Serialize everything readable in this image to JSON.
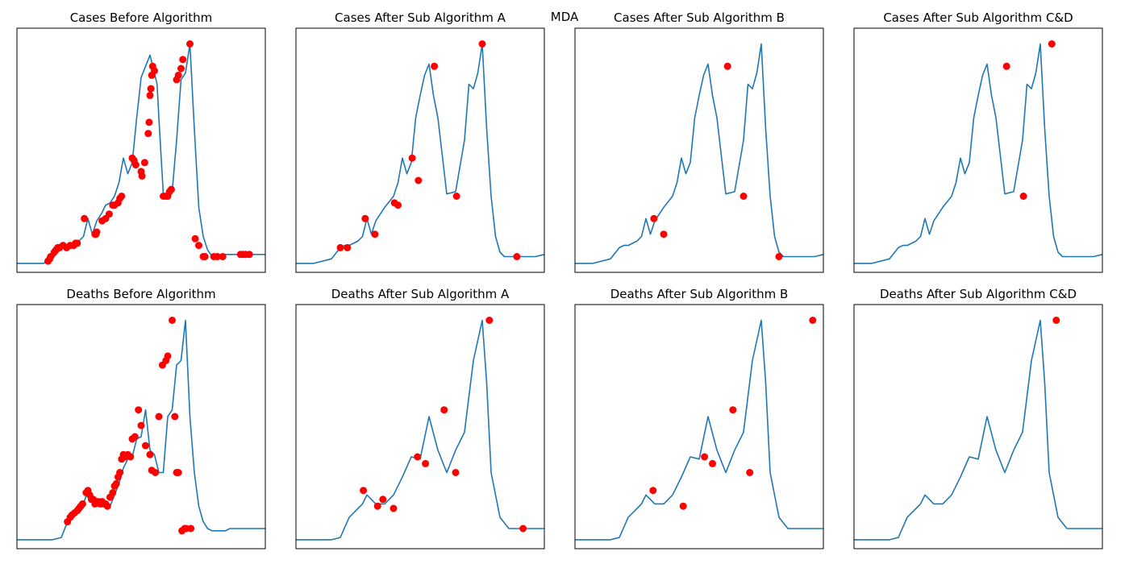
{
  "suptitle": "MDA",
  "colors": {
    "line": "#1f77b4",
    "marker": "#ff0000",
    "axes": "#000000"
  },
  "chart_data": [
    {
      "type": "line",
      "title": "Cases Before Algorithm",
      "x_range": [
        0,
        280
      ],
      "y_range": [
        -0.04,
        1.05
      ],
      "series": [
        {
          "x": [
            0,
            10,
            20,
            30,
            40,
            50,
            55,
            60,
            65,
            70,
            75,
            80,
            85,
            90,
            95,
            100,
            105,
            110,
            115,
            120,
            125,
            130,
            135,
            140,
            145,
            150,
            155,
            158,
            160,
            165,
            170,
            175,
            180,
            185,
            190,
            195,
            200,
            205,
            210,
            215,
            220,
            225,
            230,
            235,
            240,
            245,
            250,
            255,
            260,
            265,
            270,
            275,
            280
          ],
          "y": [
            0,
            0,
            0,
            0,
            0.02,
            0.07,
            0.08,
            0.08,
            0.09,
            0.1,
            0.12,
            0.2,
            0.13,
            0.19,
            0.22,
            0.26,
            0.27,
            0.3,
            0.36,
            0.47,
            0.4,
            0.45,
            0.65,
            0.83,
            0.88,
            0.93,
            0.85,
            0.8,
            0.65,
            0.31,
            0.3,
            0.32,
            0.55,
            0.82,
            0.85,
            0.98,
            0.6,
            0.25,
            0.12,
            0.06,
            0.03,
            0.03,
            0.04,
            0.04,
            0.04,
            0.04,
            0.04,
            0.04,
            0.04,
            0.04,
            0.04,
            0.04,
            0.04
          ]
        }
      ],
      "markers": {
        "x": [
          35,
          37,
          38,
          42,
          44,
          46,
          48,
          52,
          56,
          60,
          64,
          66,
          68,
          76,
          88,
          89,
          90,
          96,
          100,
          104,
          108,
          110,
          114,
          116,
          118,
          130,
          132,
          134,
          140,
          141,
          144,
          148,
          149,
          150,
          151,
          152,
          153,
          155,
          165,
          168,
          170,
          172,
          174,
          180,
          182,
          185,
          187,
          195,
          201,
          205,
          210,
          212,
          222,
          226,
          232,
          252,
          255,
          258,
          262
        ],
        "y": [
          0.01,
          0.02,
          0.03,
          0.05,
          0.06,
          0.07,
          0.07,
          0.08,
          0.07,
          0.08,
          0.08,
          0.09,
          0.09,
          0.2,
          0.13,
          0.13,
          0.14,
          0.19,
          0.2,
          0.22,
          0.26,
          0.26,
          0.27,
          0.29,
          0.3,
          0.47,
          0.46,
          0.44,
          0.41,
          0.39,
          0.45,
          0.58,
          0.63,
          0.75,
          0.78,
          0.84,
          0.88,
          0.86,
          0.3,
          0.3,
          0.3,
          0.32,
          0.33,
          0.82,
          0.84,
          0.87,
          0.91,
          0.98,
          0.11,
          0.08,
          0.03,
          0.03,
          0.03,
          0.03,
          0.03,
          0.04,
          0.04,
          0.04,
          0.04
        ]
      }
    },
    {
      "type": "line",
      "title": "Cases After Sub Algorithm A",
      "x_range": [
        0,
        280
      ],
      "y_range": [
        -0.04,
        1.05
      ],
      "series": [
        {
          "x": [
            0,
            20,
            40,
            50,
            55,
            60,
            65,
            70,
            75,
            80,
            85,
            90,
            100,
            110,
            115,
            120,
            125,
            130,
            135,
            140,
            145,
            150,
            155,
            160,
            170,
            180,
            190,
            195,
            200,
            205,
            210,
            215,
            220,
            225,
            230,
            235,
            240,
            245,
            250,
            255,
            260,
            270,
            280
          ],
          "y": [
            0,
            0,
            0.02,
            0.07,
            0.08,
            0.08,
            0.09,
            0.1,
            0.12,
            0.2,
            0.13,
            0.19,
            0.25,
            0.3,
            0.36,
            0.47,
            0.4,
            0.45,
            0.65,
            0.75,
            0.84,
            0.89,
            0.75,
            0.65,
            0.31,
            0.32,
            0.55,
            0.8,
            0.78,
            0.85,
            0.98,
            0.6,
            0.3,
            0.12,
            0.05,
            0.03,
            0.03,
            0.03,
            0.03,
            0.03,
            0.03,
            0.03,
            0.04
          ]
        }
      ],
      "markers": {
        "x": [
          50,
          58,
          78,
          89,
          111,
          115,
          131,
          138,
          156,
          181,
          210,
          249
        ],
        "y": [
          0.07,
          0.07,
          0.2,
          0.13,
          0.27,
          0.26,
          0.47,
          0.37,
          0.88,
          0.3,
          0.98,
          0.03
        ]
      }
    },
    {
      "type": "line",
      "title": "Cases After Sub Algorithm B",
      "x_range": [
        0,
        280
      ],
      "y_range": [
        -0.04,
        1.05
      ],
      "series": [
        {
          "x": [
            0,
            20,
            40,
            50,
            55,
            60,
            65,
            70,
            75,
            80,
            85,
            90,
            100,
            110,
            115,
            120,
            125,
            130,
            135,
            140,
            145,
            150,
            155,
            160,
            170,
            180,
            190,
            195,
            200,
            205,
            210,
            215,
            220,
            225,
            230,
            235,
            240,
            245,
            250,
            255,
            260,
            270,
            280
          ],
          "y": [
            0,
            0,
            0.02,
            0.07,
            0.08,
            0.08,
            0.09,
            0.1,
            0.12,
            0.2,
            0.13,
            0.19,
            0.25,
            0.3,
            0.36,
            0.47,
            0.4,
            0.45,
            0.65,
            0.75,
            0.84,
            0.89,
            0.75,
            0.65,
            0.31,
            0.32,
            0.55,
            0.8,
            0.78,
            0.85,
            0.98,
            0.6,
            0.3,
            0.12,
            0.05,
            0.03,
            0.03,
            0.03,
            0.03,
            0.03,
            0.03,
            0.03,
            0.04
          ]
        }
      ],
      "markers": {
        "x": [
          89,
          100,
          172,
          190,
          230
        ],
        "y": [
          0.2,
          0.13,
          0.88,
          0.3,
          0.03
        ]
      }
    },
    {
      "type": "line",
      "title": "Cases After Sub Algorithm C&D",
      "x_range": [
        0,
        280
      ],
      "y_range": [
        -0.04,
        1.05
      ],
      "series": [
        {
          "x": [
            0,
            20,
            40,
            50,
            55,
            60,
            65,
            70,
            75,
            80,
            85,
            90,
            100,
            110,
            115,
            120,
            125,
            130,
            135,
            140,
            145,
            150,
            155,
            160,
            170,
            180,
            190,
            195,
            200,
            205,
            210,
            215,
            220,
            225,
            230,
            235,
            240,
            245,
            250,
            255,
            260,
            270,
            280
          ],
          "y": [
            0,
            0,
            0.02,
            0.07,
            0.08,
            0.08,
            0.09,
            0.1,
            0.12,
            0.2,
            0.13,
            0.19,
            0.25,
            0.3,
            0.36,
            0.47,
            0.4,
            0.45,
            0.65,
            0.75,
            0.84,
            0.89,
            0.75,
            0.65,
            0.31,
            0.32,
            0.55,
            0.8,
            0.78,
            0.85,
            0.98,
            0.6,
            0.3,
            0.12,
            0.05,
            0.03,
            0.03,
            0.03,
            0.03,
            0.03,
            0.03,
            0.03,
            0.04
          ]
        }
      ],
      "markers": {
        "x": [
          172,
          191,
          223
        ],
        "y": [
          0.88,
          0.3,
          0.98
        ]
      }
    },
    {
      "type": "line",
      "title": "Deaths Before Algorithm",
      "x_range": [
        0,
        280
      ],
      "y_range": [
        -0.04,
        1.05
      ],
      "series": [
        {
          "x": [
            0,
            10,
            20,
            30,
            40,
            50,
            55,
            60,
            65,
            70,
            75,
            80,
            85,
            90,
            95,
            100,
            105,
            110,
            115,
            120,
            125,
            130,
            135,
            140,
            145,
            150,
            155,
            160,
            165,
            170,
            175,
            180,
            185,
            190,
            195,
            200,
            205,
            210,
            215,
            220,
            225,
            230,
            235,
            240,
            250,
            255,
            260,
            265,
            270,
            275,
            280
          ],
          "y": [
            0,
            0,
            0,
            0,
            0,
            0.01,
            0.06,
            0.09,
            0.12,
            0.14,
            0.16,
            0.22,
            0.2,
            0.17,
            0.16,
            0.17,
            0.15,
            0.2,
            0.25,
            0.32,
            0.36,
            0.37,
            0.45,
            0.46,
            0.58,
            0.4,
            0.38,
            0.3,
            0.3,
            0.55,
            0.58,
            0.78,
            0.8,
            0.98,
            0.55,
            0.3,
            0.15,
            0.08,
            0.05,
            0.04,
            0.04,
            0.04,
            0.04,
            0.05,
            0.05,
            0.05,
            0.05,
            0.05,
            0.05,
            0.05,
            0.05
          ]
        }
      ],
      "markers": {
        "x": [
          57,
          60,
          62,
          65,
          68,
          70,
          72,
          74,
          78,
          80,
          82,
          84,
          86,
          88,
          90,
          92,
          94,
          96,
          98,
          100,
          102,
          105,
          108,
          110,
          112,
          114,
          116,
          118,
          120,
          122,
          125,
          128,
          130,
          133,
          137,
          140,
          145,
          150,
          152,
          156,
          160,
          164,
          168,
          170,
          175,
          178,
          180,
          182,
          186,
          189,
          191,
          196
        ],
        "y": [
          0.08,
          0.1,
          0.11,
          0.12,
          0.13,
          0.14,
          0.15,
          0.16,
          0.21,
          0.22,
          0.2,
          0.18,
          0.18,
          0.16,
          0.17,
          0.17,
          0.16,
          0.17,
          0.16,
          0.16,
          0.15,
          0.19,
          0.21,
          0.24,
          0.25,
          0.28,
          0.3,
          0.36,
          0.38,
          0.37,
          0.38,
          0.37,
          0.45,
          0.46,
          0.58,
          0.51,
          0.42,
          0.38,
          0.31,
          0.3,
          0.55,
          0.78,
          0.8,
          0.82,
          0.98,
          0.55,
          0.3,
          0.3,
          0.04,
          0.05,
          0.05,
          0.05
        ]
      }
    },
    {
      "type": "line",
      "title": "Deaths After Sub Algorithm A",
      "x_range": [
        0,
        280
      ],
      "y_range": [
        -0.04,
        1.05
      ],
      "series": [
        {
          "x": [
            0,
            20,
            40,
            50,
            60,
            70,
            75,
            80,
            90,
            100,
            110,
            120,
            130,
            140,
            150,
            160,
            170,
            180,
            190,
            200,
            210,
            215,
            220,
            230,
            240,
            250,
            260,
            270,
            280
          ],
          "y": [
            0,
            0,
            0,
            0.01,
            0.1,
            0.14,
            0.16,
            0.2,
            0.16,
            0.16,
            0.2,
            0.28,
            0.37,
            0.36,
            0.55,
            0.4,
            0.3,
            0.4,
            0.48,
            0.8,
            0.98,
            0.7,
            0.3,
            0.1,
            0.05,
            0.05,
            0.05,
            0.05,
            0.05
          ]
        }
      ],
      "markers": {
        "x": [
          76,
          92,
          98,
          110,
          137,
          146,
          167,
          180,
          218,
          256
        ],
        "y": [
          0.22,
          0.15,
          0.18,
          0.14,
          0.37,
          0.34,
          0.58,
          0.3,
          0.98,
          0.05
        ]
      }
    },
    {
      "type": "line",
      "title": "Deaths After Sub Algorithm B",
      "x_range": [
        0,
        280
      ],
      "y_range": [
        -0.04,
        1.05
      ],
      "series": [
        {
          "x": [
            0,
            20,
            40,
            50,
            60,
            70,
            75,
            80,
            90,
            100,
            110,
            120,
            130,
            140,
            150,
            160,
            170,
            180,
            190,
            200,
            210,
            215,
            220,
            230,
            240,
            250,
            260,
            270,
            280
          ],
          "y": [
            0,
            0,
            0,
            0.01,
            0.1,
            0.14,
            0.16,
            0.2,
            0.16,
            0.16,
            0.2,
            0.28,
            0.37,
            0.36,
            0.55,
            0.4,
            0.3,
            0.4,
            0.48,
            0.8,
            0.98,
            0.7,
            0.3,
            0.1,
            0.05,
            0.05,
            0.05,
            0.05,
            0.05
          ]
        }
      ],
      "markers": {
        "x": [
          88,
          122,
          146,
          155,
          178,
          197,
          268
        ],
        "y": [
          0.22,
          0.15,
          0.37,
          0.34,
          0.58,
          0.3,
          0.98
        ]
      }
    },
    {
      "type": "line",
      "title": "Deaths After Sub Algorithm C&D",
      "x_range": [
        0,
        280
      ],
      "y_range": [
        -0.04,
        1.05
      ],
      "series": [
        {
          "x": [
            0,
            20,
            40,
            50,
            60,
            70,
            75,
            80,
            90,
            100,
            110,
            120,
            130,
            140,
            150,
            160,
            170,
            180,
            190,
            200,
            210,
            215,
            220,
            230,
            240,
            250,
            260,
            270,
            280
          ],
          "y": [
            0,
            0,
            0,
            0.01,
            0.1,
            0.14,
            0.16,
            0.2,
            0.16,
            0.16,
            0.2,
            0.28,
            0.37,
            0.36,
            0.55,
            0.4,
            0.3,
            0.4,
            0.48,
            0.8,
            0.98,
            0.7,
            0.3,
            0.1,
            0.05,
            0.05,
            0.05,
            0.05,
            0.05
          ]
        }
      ],
      "markers": {
        "x": [
          228
        ],
        "y": [
          0.98
        ]
      }
    }
  ]
}
